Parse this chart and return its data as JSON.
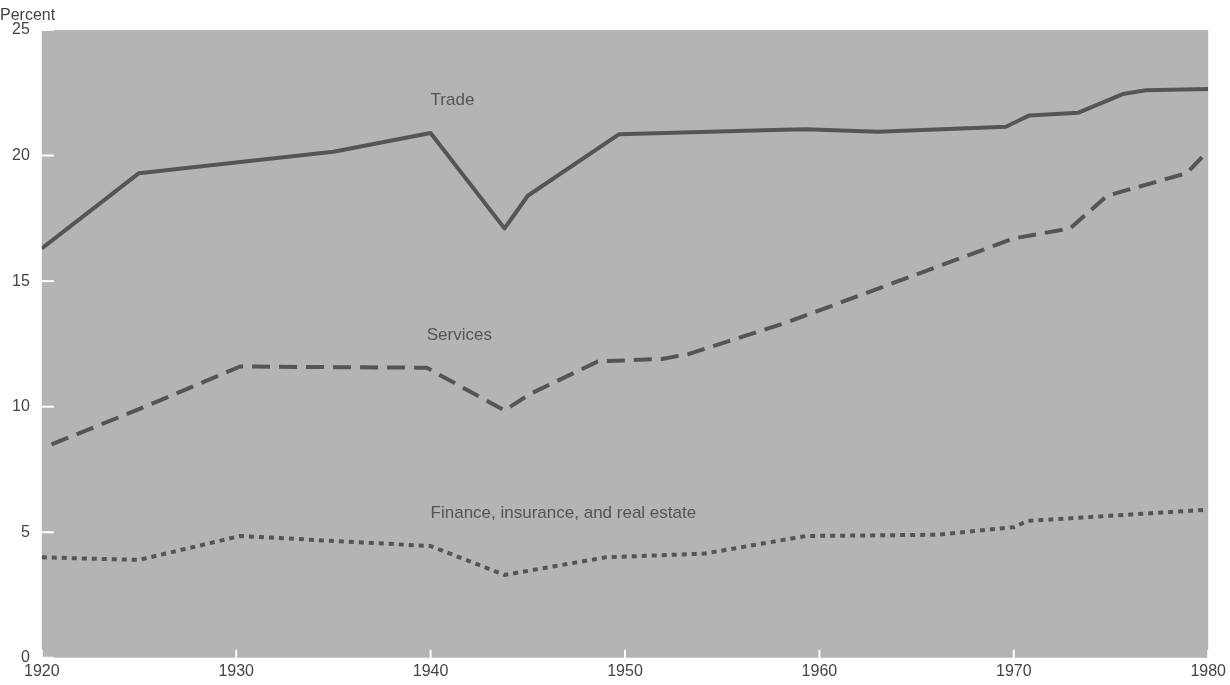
{
  "chart_data": {
    "type": "line",
    "ylabel": "Percent",
    "xlim": [
      1920,
      1980
    ],
    "xticks": [
      1920,
      1930,
      1940,
      1950,
      1960,
      1970,
      1980
    ],
    "ylim": [
      0,
      25
    ],
    "yticks": [
      0,
      5,
      10,
      15,
      20,
      25
    ],
    "grid": false,
    "legend": false,
    "marker": "none",
    "series": [
      {
        "name": "Trade",
        "color": "#555555",
        "line_style": "solid",
        "x": [
          1920,
          1925,
          1935,
          1940,
          1943.8,
          1945,
          1949.7,
          1959.3,
          1963,
          1969.6,
          1970.8,
          1973.3,
          1975.6,
          1976.8,
          1980
        ],
        "values": [
          16.3,
          19.3,
          20.15,
          20.9,
          17.1,
          18.4,
          20.85,
          21.05,
          20.95,
          21.15,
          21.6,
          21.7,
          22.45,
          22.6,
          22.65
        ]
      },
      {
        "name": "Services",
        "color": "#555555",
        "line_style": "dashed",
        "x": [
          1920.5,
          1925,
          1930.2,
          1939.8,
          1943.8,
          1945.1,
          1948.6,
          1951.9,
          1953.3,
          1958.3,
          1970,
          1972.9,
          1974.8,
          1978.9,
          1980
        ],
        "values": [
          8.5,
          9.9,
          11.6,
          11.55,
          9.85,
          10.5,
          11.8,
          11.9,
          12.1,
          13.35,
          16.7,
          17.1,
          18.4,
          19.3,
          20.2
        ]
      },
      {
        "name": "Finance, insurance, and real estate",
        "color": "#555555",
        "line_style": "dotted",
        "x": [
          1920,
          1925,
          1930.2,
          1940,
          1943.8,
          1949,
          1954.1,
          1959.3,
          1966.1,
          1970,
          1970.7,
          1980
        ],
        "values": [
          4.0,
          3.9,
          4.85,
          4.45,
          3.3,
          4.0,
          4.15,
          4.85,
          4.9,
          5.2,
          5.45,
          5.9
        ]
      }
    ]
  }
}
